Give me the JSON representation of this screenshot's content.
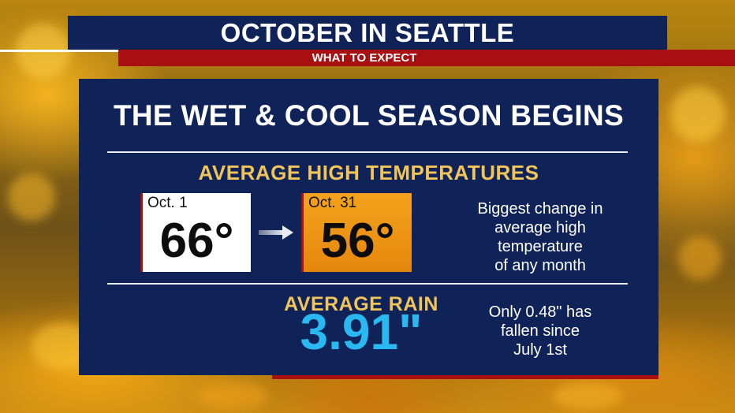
{
  "header": {
    "title": "OCTOBER IN SEATTLE",
    "subtitle": "WHAT TO EXPECT"
  },
  "panel": {
    "headline": "THE WET & COOL SEASON BEGINS",
    "temperatures": {
      "section_title": "AVERAGE HIGH TEMPERATURES",
      "start": {
        "date": "Oct. 1",
        "value": "66°"
      },
      "end": {
        "date": "Oct. 31",
        "value": "56°"
      },
      "note_lines": [
        "Biggest change in",
        "average high",
        "temperature",
        "of any month"
      ]
    },
    "rain": {
      "section_title": "AVERAGE RAIN",
      "value": "3.91\"",
      "note_lines": [
        "Only 0.48\" has",
        "fallen since",
        "July 1st"
      ]
    }
  },
  "colors": {
    "navy": "#0f2358",
    "red": "#a80f10",
    "gold": "#f2c55a",
    "rain_blue": "#2ab8f0",
    "orange_box": "#f4a31e"
  },
  "icons": {
    "arrow": "arrow-right-icon"
  }
}
